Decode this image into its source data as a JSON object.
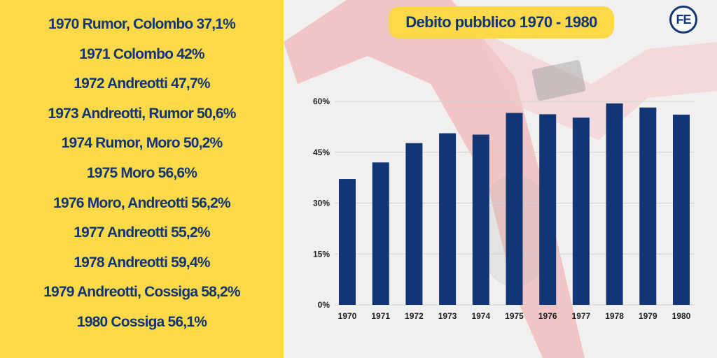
{
  "left_list": [
    "1970 Rumor, Colombo 37,1%",
    "1971 Colombo 42%",
    "1972 Andreotti 47,7%",
    "1973 Andreotti, Rumor 50,6%",
    "1974 Rumor, Moro 50,2%",
    "1975 Moro 56,6%",
    "1976 Moro, Andreotti 56,2%",
    "1977 Andreotti 55,2%",
    "1978 Andreotti 59,4%",
    "1979 Andreotti, Cossiga 58,2%",
    "1980 Cossiga 56,1%"
  ],
  "logo_text": "FE",
  "colors": {
    "bar": "#123575",
    "accent_yellow": "#fcd948",
    "text_blue": "#123575"
  },
  "chart_data": {
    "type": "bar",
    "title": "Debito pubblico 1970 - 1980",
    "categories": [
      "1970",
      "1971",
      "1972",
      "1973",
      "1974",
      "1975",
      "1976",
      "1977",
      "1978",
      "1979",
      "1980"
    ],
    "values": [
      37.1,
      42,
      47.7,
      50.6,
      50.2,
      56.6,
      56.2,
      55.2,
      59.4,
      58.2,
      56.1
    ],
    "yticks": [
      0,
      15,
      30,
      45,
      60
    ],
    "ytick_labels": [
      "0%",
      "15%",
      "30%",
      "45%",
      "60%"
    ],
    "ylim": [
      0,
      60
    ],
    "grid": true,
    "legend": "none",
    "xlabel": "",
    "ylabel": ""
  }
}
